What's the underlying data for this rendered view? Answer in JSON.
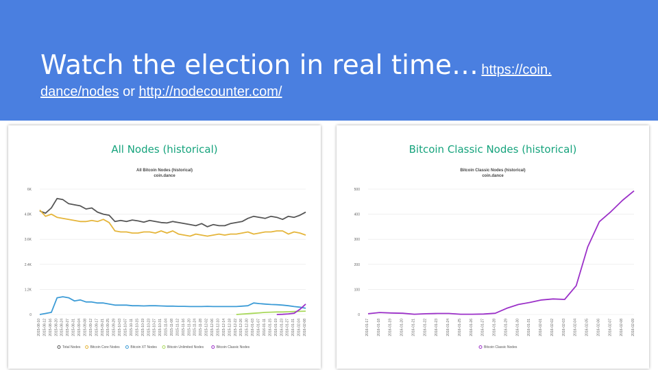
{
  "slide": {
    "title": "Watch the election in real time…",
    "link1": "https://coin.dance/nodes",
    "link1_part1": "https://coin.",
    "link1_part2": "dance/nodes",
    "or": "or",
    "link2": "http://nodecounter.com/"
  },
  "chart_data": [
    {
      "type": "line",
      "title": "All Nodes (historical)",
      "subtitle": "All Bitcoin Nodes (historical)",
      "source": "coin.dance",
      "ylim": [
        0,
        6000
      ],
      "yticks": [
        "0",
        "1.2K",
        "2.4K",
        "3.6K",
        "4.8K",
        "6K"
      ],
      "xlabels": [
        "2015-08-10",
        "2015-08-12",
        "2015-08-16",
        "2015-08-20",
        "2015-08-24",
        "2015-08-27",
        "2015-08-31",
        "2015-09-04",
        "2015-09-08",
        "2015-09-12",
        "2015-09-17",
        "2015-09-21",
        "2015-09-25",
        "2015-09-29",
        "2015-10-03",
        "2015-10-07",
        "2015-10-11",
        "2015-10-15",
        "2015-10-19",
        "2015-10-23",
        "2015-10-27",
        "2015-10-31",
        "2015-11-04",
        "2015-11-08",
        "2015-11-12",
        "2015-11-16",
        "2015-11-20",
        "2015-11-24",
        "2015-11-28",
        "2015-12-02",
        "2015-12-06",
        "2015-12-10",
        "2015-12-14",
        "2015-12-18",
        "2015-12-22",
        "2015-12-26",
        "2015-12-30",
        "2016-01-03",
        "2016-01-07",
        "2016-01-11",
        "2016-01-15",
        "2016-01-19",
        "2016-01-23",
        "2016-01-27",
        "2016-01-31",
        "2016-02-04",
        "2016-02-08"
      ],
      "series": [
        {
          "name": "Total Nodes",
          "color": "#555555",
          "values": [
            4950,
            4850,
            5100,
            5550,
            5500,
            5300,
            5250,
            5200,
            5050,
            5100,
            4900,
            4800,
            4750,
            4450,
            4500,
            4450,
            4520,
            4480,
            4420,
            4500,
            4450,
            4400,
            4380,
            4450,
            4400,
            4350,
            4300,
            4250,
            4350,
            4200,
            4300,
            4250,
            4250,
            4350,
            4400,
            4450,
            4600,
            4700,
            4650,
            4600,
            4700,
            4650,
            4550,
            4700,
            4650,
            4750,
            4900
          ]
        },
        {
          "name": "Bitcoin Core Nodes",
          "color": "#e5b53a",
          "values": [
            5000,
            4700,
            4800,
            4650,
            4600,
            4550,
            4500,
            4450,
            4450,
            4500,
            4450,
            4550,
            4400,
            4000,
            3950,
            3950,
            3900,
            3900,
            3950,
            3950,
            3900,
            4000,
            3900,
            4000,
            3850,
            3800,
            3750,
            3850,
            3800,
            3750,
            3800,
            3850,
            3800,
            3850,
            3850,
            3900,
            3950,
            3850,
            3900,
            3950,
            3950,
            4000,
            4000,
            3850,
            3950,
            3900,
            3800
          ]
        },
        {
          "name": "Bitcoin XT Nodes",
          "color": "#3b9bd6",
          "values": [
            0,
            50,
            100,
            800,
            850,
            800,
            650,
            700,
            600,
            600,
            550,
            550,
            500,
            450,
            450,
            450,
            420,
            420,
            410,
            420,
            420,
            410,
            400,
            400,
            390,
            390,
            380,
            380,
            380,
            390,
            380,
            380,
            380,
            380,
            380,
            400,
            420,
            550,
            520,
            500,
            480,
            470,
            450,
            420,
            380,
            350,
            300
          ]
        },
        {
          "name": "Bitcoin Unlimited Nodes",
          "color": "#a8d85a",
          "values": [
            null,
            null,
            null,
            null,
            null,
            null,
            null,
            null,
            null,
            null,
            null,
            null,
            null,
            null,
            null,
            null,
            null,
            null,
            null,
            null,
            null,
            null,
            null,
            null,
            null,
            null,
            null,
            null,
            null,
            null,
            null,
            null,
            null,
            null,
            0,
            20,
            40,
            60,
            80,
            100,
            110,
            120,
            120,
            130,
            140,
            150,
            160
          ]
        },
        {
          "name": "Bitcoin Classic Nodes",
          "color": "#9b30c8",
          "values": [
            null,
            null,
            null,
            null,
            null,
            null,
            null,
            null,
            null,
            null,
            null,
            null,
            null,
            null,
            null,
            null,
            null,
            null,
            null,
            null,
            null,
            null,
            null,
            null,
            null,
            null,
            null,
            null,
            null,
            null,
            null,
            null,
            null,
            null,
            null,
            null,
            null,
            null,
            null,
            null,
            null,
            0,
            10,
            30,
            60,
            250,
            500
          ]
        }
      ]
    },
    {
      "type": "line",
      "title": "Bitcoin Classic Nodes (historical)",
      "subtitle": "Bitcoin Classic Nodes (historical)",
      "source": "coin.dance",
      "ylim": [
        0,
        500
      ],
      "yticks": [
        "0",
        "100",
        "200",
        "300",
        "400",
        "500"
      ],
      "xlabels": [
        "2016-01-17",
        "2016-01-18",
        "2016-01-19",
        "2016-01-20",
        "2016-01-21",
        "2016-01-22",
        "2016-01-23",
        "2016-01-24",
        "2016-01-25",
        "2016-01-26",
        "2016-01-27",
        "2016-01-28",
        "2016-01-29",
        "2016-01-30",
        "2016-01-31",
        "2016-02-01",
        "2016-02-02",
        "2016-02-03",
        "2016-02-04",
        "2016-02-05",
        "2016-02-06",
        "2016-02-07",
        "2016-02-08",
        "2016-02-09"
      ],
      "series": [
        {
          "name": "Bitcoin Classic Nodes",
          "color": "#9b30c8",
          "values": [
            3,
            8,
            6,
            5,
            1,
            3,
            4,
            4,
            1,
            1,
            2,
            5,
            25,
            40,
            48,
            58,
            62,
            60,
            115,
            270,
            370,
            410,
            455,
            493
          ]
        }
      ]
    }
  ]
}
